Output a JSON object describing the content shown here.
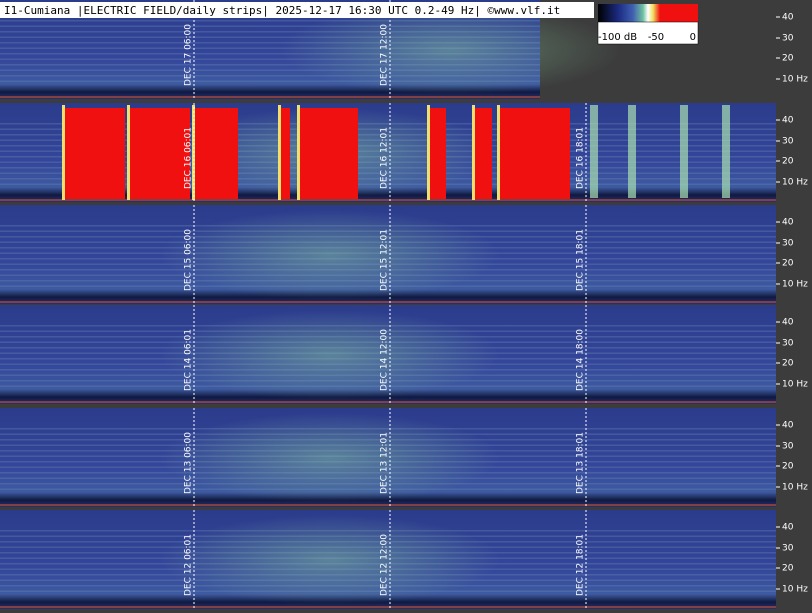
{
  "header": {
    "title": "I1-Cumiana |ELECTRIC FIELD/daily strips| 2025-12-17 16:30 UTC 0.2-49 Hz| ©www.vlf.it"
  },
  "colorbar": {
    "labels": [
      "-100 dB",
      "-50",
      "0"
    ]
  },
  "frequency_axis": {
    "labels": [
      "40",
      "30",
      "20",
      "10 Hz"
    ]
  },
  "strips": [
    {
      "markers": [
        "DEC 17 06:00",
        "DEC 17 12:00"
      ]
    },
    {
      "markers": [
        "DEC 16 06:01",
        "DEC 16 12:01",
        "DEC 16 18:01"
      ]
    },
    {
      "markers": [
        "DEC 15 06:00",
        "DEC 15 12:01",
        "DEC 15 18:01"
      ]
    },
    {
      "markers": [
        "DEC 14 06:01",
        "DEC 14 12:00",
        "DEC 14 18:00"
      ]
    },
    {
      "markers": [
        "DEC 13 06:00",
        "DEC 13 12:01",
        "DEC 13 18:01"
      ]
    },
    {
      "markers": [
        "DEC 12 06:01",
        "DEC 12 12:00",
        "DEC 12 18:01"
      ]
    }
  ]
}
